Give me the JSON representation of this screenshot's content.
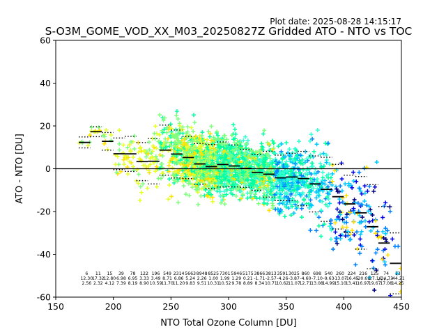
{
  "header": {
    "plot_date": "Plot date: 2025-08-28 14:15:17"
  },
  "chart_data": {
    "type": "scatter",
    "title": "S-O3M_GOME_VOD_XX_M03_20250827Z Gridded ATO - NTO vs TOC",
    "xlabel": "NTO Total Ozone Column [DU]",
    "ylabel": "ATO - NTO [DU]",
    "xlim": [
      150,
      450
    ],
    "ylim": [
      -60,
      60
    ],
    "xticks": [
      150,
      200,
      250,
      300,
      350,
      400,
      450
    ],
    "yticks": [
      -60,
      -40,
      -20,
      0,
      20,
      40,
      60
    ],
    "zero_line": 0,
    "grid": false,
    "colors": {
      "point_palette": [
        "#7fff7f",
        "#00ffa0",
        "#33ffd5",
        "#e5ff2a",
        "#ffe000",
        "#00c8ff",
        "#0080ff",
        "#0000e0",
        "#00007f"
      ],
      "bin_mean": "#000000",
      "zero_line": "#000000"
    },
    "bins": {
      "x": [
        175,
        185,
        195,
        205,
        215,
        225,
        235,
        245,
        255,
        265,
        275,
        285,
        295,
        305,
        315,
        325,
        335,
        345,
        355,
        365,
        375,
        385,
        395,
        405,
        415,
        425,
        435,
        445
      ],
      "counts": [
        "6",
        "11",
        "15",
        "39",
        "78",
        "122",
        "196",
        "549",
        "2314",
        "5663",
        "8948",
        "8525",
        "7301",
        "5946",
        "5175",
        "3866",
        "3813",
        "3591",
        "3025",
        "860",
        "698",
        "540",
        "260",
        "224",
        "216",
        "125",
        "74",
        "13"
      ],
      "mean": [
        12.3,
        17.32,
        12.8,
        6.98,
        6.95,
        3.33,
        3.49,
        8.71,
        6.86,
        5.24,
        2.26,
        1.0,
        1.99,
        1.29,
        0.21,
        -1.71,
        -2.57,
        -4.26,
        -3.87,
        -4.6,
        -7.1,
        -9.63,
        -13.07,
        -16.45,
        -20.61,
        -27.1,
        -34.73,
        -44.21
      ],
      "std": [
        2.56,
        2.32,
        4.12,
        7.39,
        8.19,
        8.9,
        10.59,
        11.7,
        11.2,
        9.83,
        9.51,
        10.31,
        10.52,
        9.78,
        8.89,
        8.34,
        10.71,
        10.62,
        11.07,
        12.71,
        13.08,
        14.99,
        15.1,
        13.41,
        16.97,
        19.67,
        17.08,
        14.25
      ]
    }
  }
}
